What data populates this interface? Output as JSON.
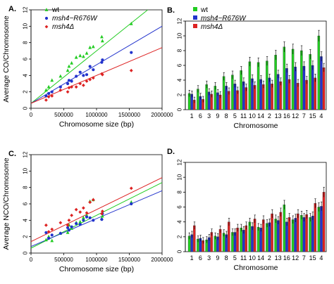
{
  "chart_data": [
    {
      "panel": "A.",
      "type": "scatter",
      "ylabel": "Average CO/Chromosome",
      "xlabel": "Chromosome size (bp)",
      "xlim": [
        0,
        2000000
      ],
      "ylim": [
        0,
        12
      ],
      "xticks": [
        0,
        500000,
        1000000,
        1500000,
        2000000
      ],
      "xtick_labels": [
        "0",
        "500000",
        "1000000",
        "1500000",
        "2000000"
      ],
      "yticks": [
        0,
        2,
        4,
        6,
        8,
        10,
        12
      ],
      "ytick_labels": [
        "0",
        "2",
        "4",
        "6",
        "8",
        "10",
        "12"
      ],
      "legend": "top-left",
      "series": [
        {
          "name": "wt",
          "color": "#22cc22",
          "marker": "triangle",
          "x": [
            230000,
            270000,
            320000,
            450000,
            560000,
            580000,
            620000,
            690000,
            750000,
            800000,
            850000,
            900000,
            950000,
            1080000,
            1090000,
            1530000
          ],
          "y": [
            2.2,
            2.6,
            3.4,
            3.9,
            4.6,
            5.1,
            5.5,
            6.2,
            6.4,
            6.3,
            6.7,
            7.4,
            7.5,
            8.7,
            8.2,
            10.3
          ],
          "fit": [
            0.6,
            6.4e-06
          ]
        },
        {
          "name": "msh4−R676W",
          "color": "#2233cc",
          "marker": "circle",
          "x": [
            230000,
            270000,
            320000,
            450000,
            560000,
            580000,
            620000,
            690000,
            750000,
            800000,
            850000,
            900000,
            950000,
            1080000,
            1090000,
            1530000
          ],
          "y": [
            1.5,
            1.8,
            2.0,
            2.6,
            3.0,
            3.4,
            3.3,
            3.9,
            4.4,
            4.0,
            4.1,
            5.1,
            4.7,
            5.6,
            5.9,
            6.8
          ],
          "fit": [
            0.6,
            4.7e-06
          ]
        },
        {
          "name": "msh4Δ",
          "color": "#dd2222",
          "marker": "diamond",
          "x": [
            230000,
            270000,
            320000,
            450000,
            560000,
            580000,
            620000,
            690000,
            750000,
            800000,
            850000,
            900000,
            950000,
            1080000,
            1090000,
            1530000
          ],
          "y": [
            1.0,
            1.4,
            1.5,
            2.2,
            2.0,
            2.5,
            2.6,
            2.6,
            3.0,
            2.8,
            3.3,
            3.5,
            3.7,
            4.2,
            4.1,
            4.6
          ],
          "fit": [
            0.6,
            3.4e-06
          ]
        }
      ]
    },
    {
      "panel": "B.",
      "type": "bar",
      "xlabel": "Chromosome",
      "ylim": [
        0,
        12
      ],
      "yticks": [
        0,
        2,
        4,
        6,
        8,
        10,
        12
      ],
      "ytick_labels": [
        "0",
        "2",
        "4",
        "6",
        "8",
        "10",
        "12"
      ],
      "legend": "top-left",
      "categories": [
        "1",
        "6",
        "3",
        "9",
        "8",
        "5",
        "11",
        "10",
        "14",
        "2",
        "13",
        "16",
        "12",
        "7",
        "15",
        "4"
      ],
      "series": [
        {
          "name": "wt",
          "color": "#22cc22",
          "values": [
            2.2,
            2.8,
            3.4,
            3.2,
            4.5,
            4.7,
            5.3,
            6.5,
            6.4,
            6.6,
            7.4,
            8.5,
            8.2,
            8.0,
            7.5,
            10.0
          ]
        },
        {
          "name": "msh4−R676W",
          "color": "#2233cc",
          "values": [
            2.1,
            1.8,
            2.4,
            2.3,
            3.2,
            3.5,
            3.8,
            4.2,
            4.1,
            4.3,
            4.8,
            5.6,
            5.8,
            5.9,
            6.0,
            7.2
          ]
        },
        {
          "name": "msh4Δ",
          "color": "#dd2222",
          "values": [
            1.3,
            1.4,
            2.1,
            2.0,
            2.5,
            2.6,
            3.0,
            3.3,
            3.4,
            3.5,
            3.8,
            4.1,
            3.6,
            4.0,
            4.3,
            5.7
          ]
        }
      ],
      "significance_marker": "*"
    },
    {
      "panel": "C.",
      "type": "scatter",
      "ylabel": "Average NCO/Chromosome",
      "xlabel": "Chromosome size (bp)",
      "xlim": [
        0,
        2000000
      ],
      "ylim": [
        0,
        12
      ],
      "xticks": [
        0,
        500000,
        1000000,
        1500000,
        2000000
      ],
      "xtick_labels": [
        "0",
        "500000",
        "1000000",
        "1500000",
        "2000000"
      ],
      "yticks": [
        0,
        2,
        4,
        6,
        8,
        10,
        12
      ],
      "ytick_labels": [
        "0",
        "2",
        "4",
        "6",
        "8",
        "10",
        "12"
      ],
      "series": [
        {
          "name": "wt",
          "color": "#22cc22",
          "marker": "triangle",
          "x": [
            230000,
            270000,
            320000,
            450000,
            560000,
            580000,
            620000,
            690000,
            750000,
            800000,
            850000,
            900000,
            950000,
            1080000,
            1090000,
            1530000
          ],
          "y": [
            1.6,
            2.0,
            1.5,
            2.4,
            2.5,
            3.4,
            3.0,
            3.7,
            3.8,
            4.3,
            4.6,
            6.3,
            6.5,
            4.2,
            4.5,
            6.2
          ],
          "fit": [
            0.6,
            4e-06
          ]
        },
        {
          "name": "msh4−R676W",
          "color": "#2233cc",
          "marker": "circle",
          "x": [
            230000,
            270000,
            320000,
            450000,
            560000,
            580000,
            620000,
            690000,
            750000,
            800000,
            850000,
            900000,
            950000,
            1080000,
            1090000,
            1530000
          ],
          "y": [
            2.5,
            1.8,
            2.2,
            2.4,
            3.1,
            2.8,
            3.2,
            3.6,
            3.5,
            4.0,
            4.4,
            4.3,
            4.0,
            4.1,
            4.8,
            6.0
          ],
          "fit": [
            0.8,
            3.4e-06
          ]
        },
        {
          "name": "msh4Δ",
          "color": "#dd2222",
          "marker": "diamond",
          "x": [
            230000,
            270000,
            320000,
            450000,
            560000,
            580000,
            620000,
            690000,
            750000,
            800000,
            850000,
            900000,
            950000,
            1080000,
            1090000,
            1530000
          ],
          "y": [
            3.4,
            2.6,
            2.9,
            3.7,
            3.4,
            4.0,
            4.6,
            5.3,
            5.0,
            5.5,
            4.9,
            6.2,
            6.5,
            4.8,
            5.1,
            7.9
          ],
          "fit": [
            1.4,
            3.9e-06
          ]
        }
      ]
    },
    {
      "panel": "D.",
      "type": "bar",
      "xlabel": "Chromosome",
      "ylim": [
        0,
        12
      ],
      "yticks": [
        0,
        2,
        4,
        6,
        8,
        10,
        12
      ],
      "ytick_labels": [
        "0",
        "2",
        "4",
        "6",
        "8",
        "10",
        "12"
      ],
      "categories": [
        "1",
        "6",
        "3",
        "9",
        "8",
        "5",
        "11",
        "10",
        "14",
        "2",
        "13",
        "16",
        "12",
        "7",
        "15",
        "4"
      ],
      "series": [
        {
          "name": "wt",
          "color": "#22cc22",
          "values": [
            2.1,
            1.7,
            1.6,
            2.1,
            2.5,
            2.6,
            3.2,
            4.0,
            3.3,
            3.8,
            4.4,
            6.3,
            4.3,
            4.9,
            4.6,
            6.0
          ]
        },
        {
          "name": "msh4−R676W",
          "color": "#2233cc",
          "values": [
            2.3,
            1.8,
            1.9,
            2.0,
            2.3,
            2.6,
            2.9,
            3.4,
            3.2,
            3.9,
            4.2,
            4.0,
            4.5,
            4.6,
            4.8,
            6.1
          ]
        },
        {
          "name": "msh4Δ",
          "color": "#dd2222",
          "values": [
            3.5,
            1.5,
            2.6,
            3.0,
            4.0,
            3.2,
            3.5,
            4.4,
            4.3,
            5.1,
            5.3,
            4.6,
            5.1,
            5.0,
            6.5,
            8.0
          ]
        }
      ],
      "significance_marker": "*"
    }
  ]
}
